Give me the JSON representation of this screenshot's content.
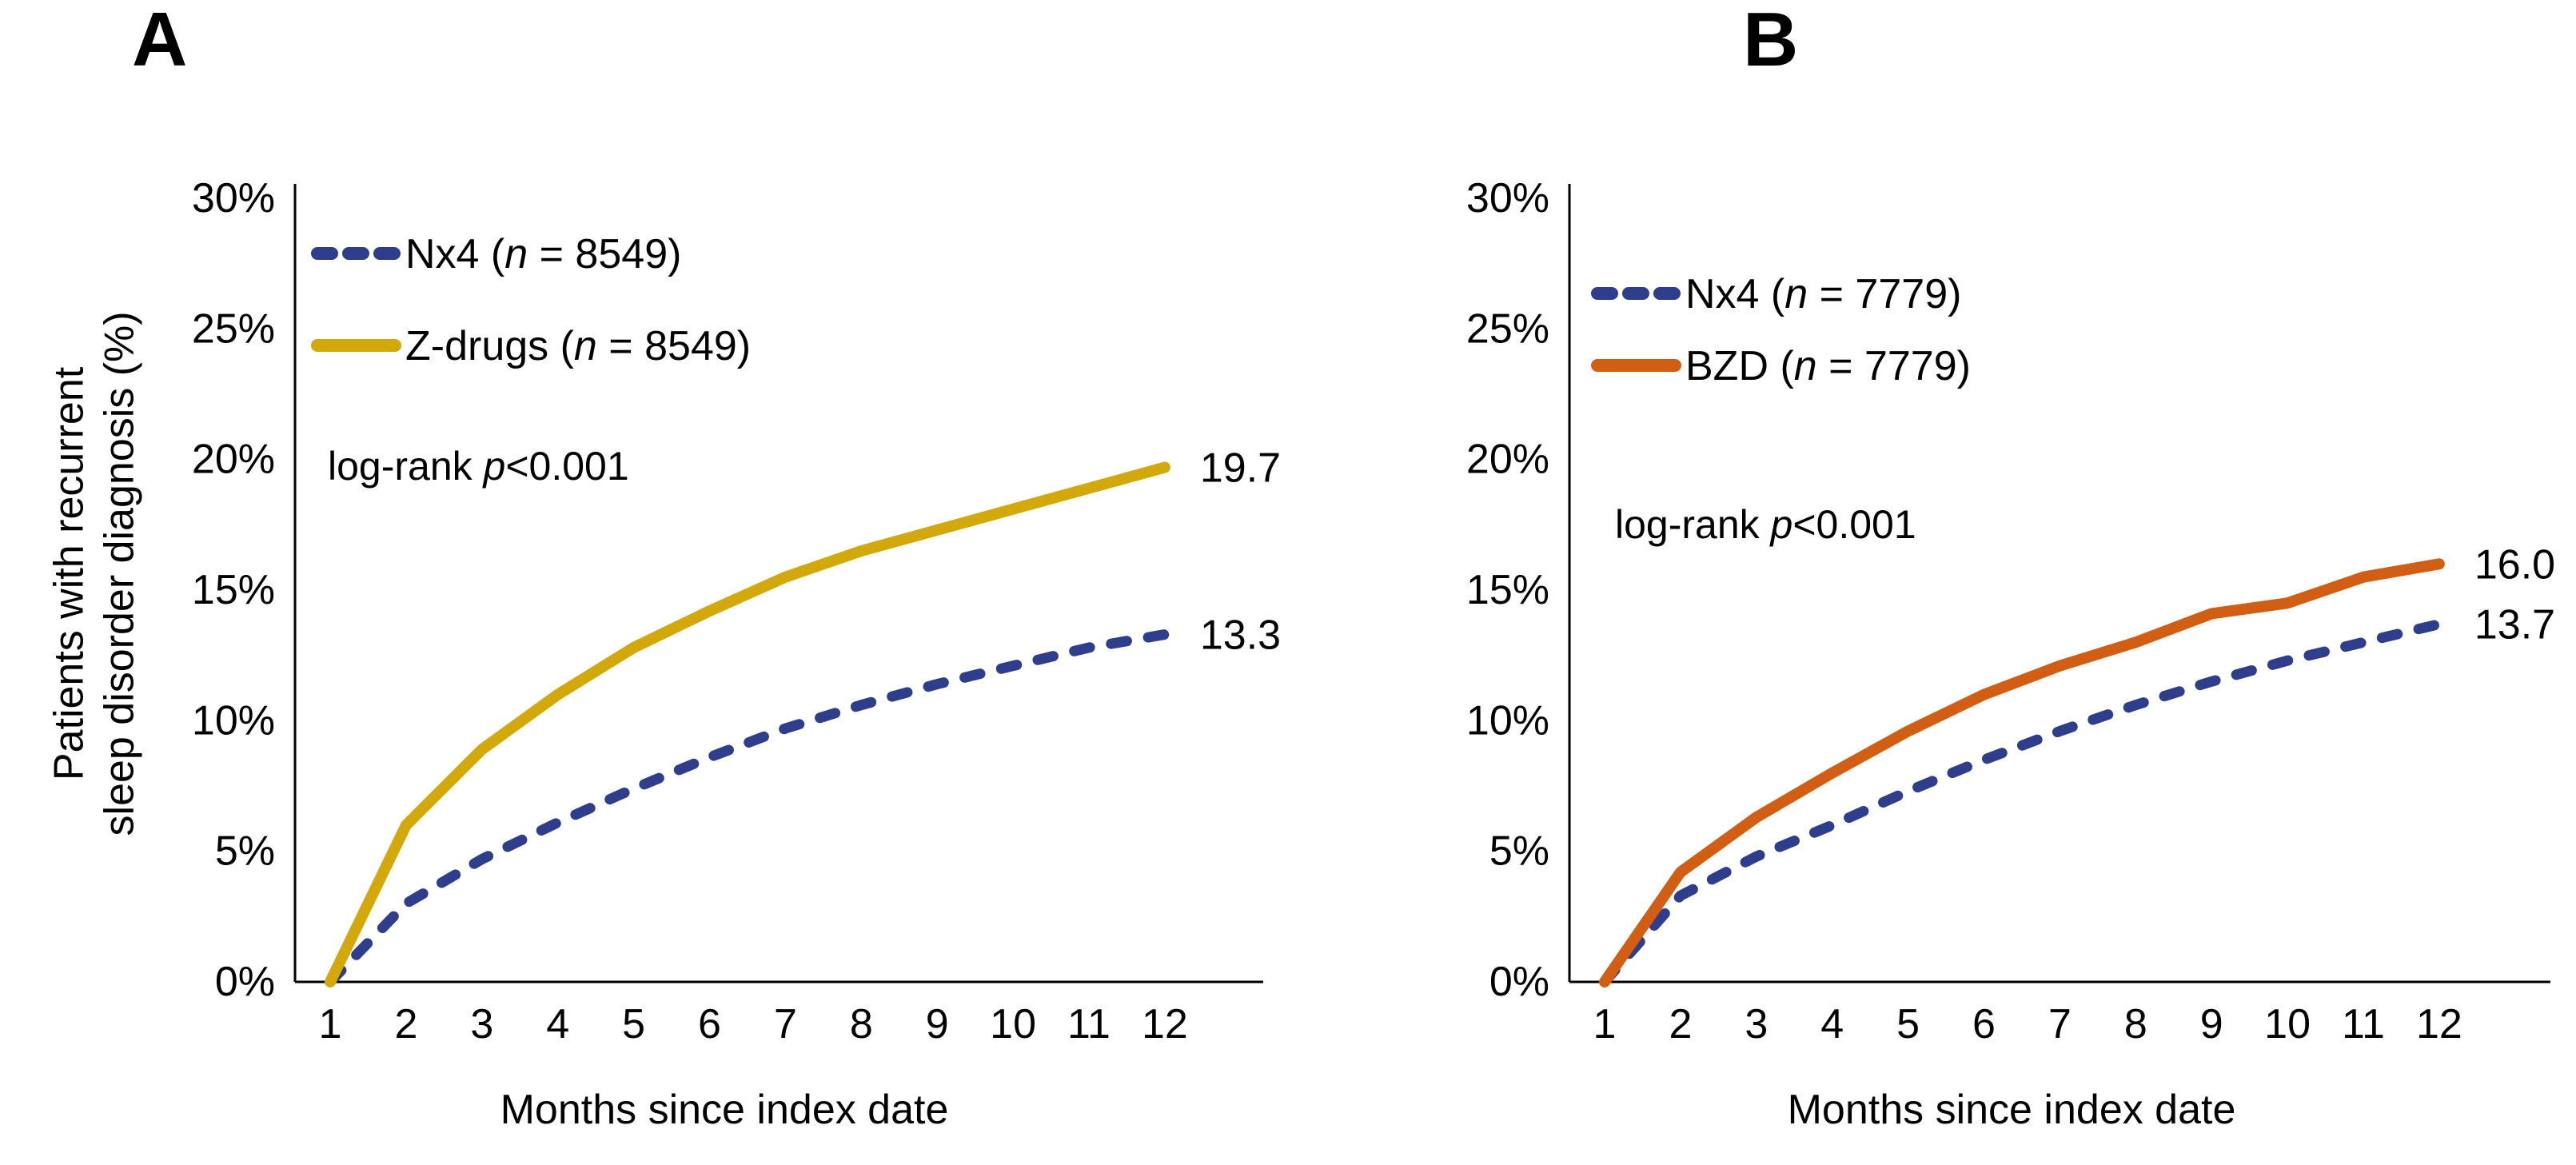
{
  "figure": {
    "panel_a_letter": "A",
    "panel_b_letter": "B",
    "y_axis_title_line1": "Patients with recurrent",
    "y_axis_title_line2": "sleep disorder diagnosis (%)",
    "colors": {
      "nx4_blue": "#2E3D8C",
      "zdrugs_yellow": "#D2A80A",
      "bzd_orange": "#D25E14",
      "axis_black": "#000000"
    }
  },
  "chart_data": [
    {
      "type": "line",
      "panel": "A",
      "title": "",
      "xlabel": "Months since index date",
      "ylabel": "Patients with recurrent sleep disorder diagnosis (%)",
      "ylabel_line1": "Patients with recurrent",
      "ylabel_line2": "sleep disorder diagnosis (%)",
      "x": [
        1,
        2,
        3,
        4,
        5,
        6,
        7,
        8,
        9,
        10,
        11,
        12
      ],
      "ylim": [
        0,
        30
      ],
      "ytick_values": [
        30,
        25,
        20,
        15,
        10,
        5,
        0
      ],
      "ytick_labels": [
        "30%",
        "25%",
        "20%",
        "15%",
        "10%",
        "5%",
        "0%"
      ],
      "grid": false,
      "legend_position": "inside-top-left",
      "annotation": {
        "pre": "log-rank ",
        "italic": "p",
        "post": "<0.001"
      },
      "series": [
        {
          "name": "Nx4",
          "n": "8549",
          "legend_label": "Nx4 (n = 8549)",
          "color": "#2E3D8C",
          "style": "dashed",
          "values": [
            0,
            3.0,
            4.7,
            6.1,
            7.4,
            8.6,
            9.7,
            10.6,
            11.4,
            12.1,
            12.8,
            13.3
          ],
          "end_label": "13.3"
        },
        {
          "name": "Z-drugs",
          "n": "8549",
          "legend_label": "Z-drugs (n = 8549)",
          "color": "#D2A80A",
          "style": "solid",
          "values": [
            0,
            6.0,
            8.9,
            11.0,
            12.8,
            14.2,
            15.5,
            16.5,
            17.3,
            18.1,
            18.9,
            19.7
          ],
          "end_label": "19.7"
        }
      ]
    },
    {
      "type": "line",
      "panel": "B",
      "title": "",
      "xlabel": "Months since index date",
      "ylabel": "",
      "x": [
        1,
        2,
        3,
        4,
        5,
        6,
        7,
        8,
        9,
        10,
        11,
        12
      ],
      "ylim": [
        0,
        30
      ],
      "ytick_values": [
        30,
        25,
        20,
        15,
        10,
        5,
        0
      ],
      "ytick_labels": [
        "30%",
        "25%",
        "20%",
        "15%",
        "10%",
        "5%",
        "0%"
      ],
      "grid": false,
      "legend_position": "inside-top-left",
      "annotation": {
        "pre": "log-rank ",
        "italic": "p",
        "post": "<0.001"
      },
      "series": [
        {
          "name": "Nx4",
          "n": "7779",
          "legend_label": "Nx4 (n = 7779)",
          "color": "#2E3D8C",
          "style": "dashed",
          "values": [
            0,
            3.3,
            4.8,
            6.0,
            7.3,
            8.5,
            9.6,
            10.6,
            11.5,
            12.3,
            13.0,
            13.7
          ],
          "end_label": "13.7"
        },
        {
          "name": "BZD",
          "n": "7779",
          "legend_label": "BZD (n = 7779)",
          "color": "#D25E14",
          "style": "solid",
          "values": [
            0,
            4.2,
            6.3,
            8.0,
            9.6,
            11.0,
            12.1,
            13.0,
            14.1,
            14.5,
            15.5,
            16.0
          ],
          "end_label": "16.0"
        }
      ]
    }
  ]
}
